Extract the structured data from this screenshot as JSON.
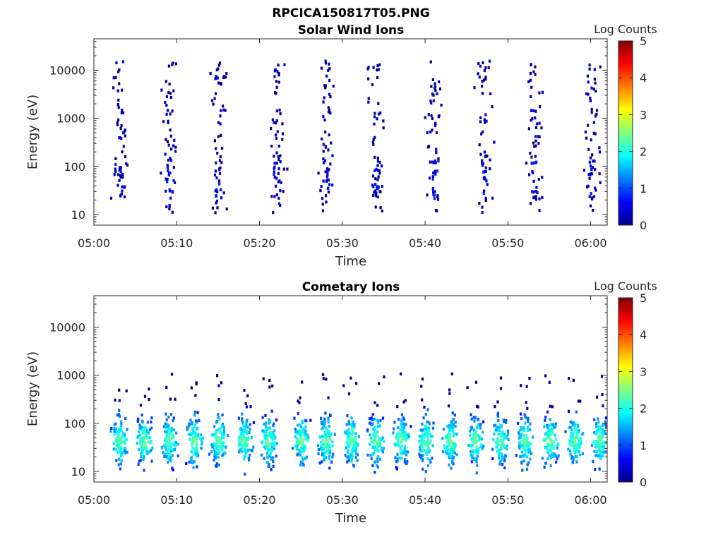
{
  "figure_title": "RPCICA150817T05.PNG",
  "chart_data": [
    {
      "type": "heatmap",
      "title": "Solar Wind Ions",
      "xlabel": "Time",
      "ylabel": "Energy (eV)",
      "yscale": "log",
      "ylim": [
        6,
        45000
      ],
      "xlim": [
        "05:00",
        "06:02"
      ],
      "xticks": [
        "05:00",
        "05:10",
        "05:20",
        "05:30",
        "05:40",
        "05:50",
        "06:00"
      ],
      "yticks": [
        "10",
        "100",
        "1000",
        "10000"
      ],
      "colorbar": {
        "label": "Log Counts",
        "min": 0,
        "max": 5,
        "ticks": [
          "0",
          "1",
          "2",
          "3",
          "4",
          "5"
        ],
        "colormap": "jet"
      },
      "grid": false,
      "scan_times": [
        "05:03",
        "05:09",
        "05:15",
        "05:22",
        "05:28",
        "05:34",
        "05:41",
        "05:47",
        "05:53",
        "06:00"
      ],
      "energy_range_ev": [
        10,
        15000
      ],
      "typical_log_counts": [
        0,
        1
      ]
    },
    {
      "type": "heatmap",
      "title": "Cometary Ions",
      "xlabel": "Time",
      "ylabel": "Energy (eV)",
      "yscale": "log",
      "ylim": [
        6,
        45000
      ],
      "xlim": [
        "05:00",
        "06:02"
      ],
      "xticks": [
        "05:00",
        "05:10",
        "05:20",
        "05:30",
        "05:40",
        "05:50",
        "06:00"
      ],
      "yticks": [
        "10",
        "100",
        "1000",
        "10000"
      ],
      "colorbar": {
        "label": "Log Counts",
        "min": 0,
        "max": 5,
        "ticks": [
          "0",
          "1",
          "2",
          "3",
          "4",
          "5"
        ],
        "colormap": "jet"
      },
      "grid": false,
      "band_times": [
        "05:03",
        "05:06",
        "05:09",
        "05:12",
        "05:15",
        "05:18",
        "05:21",
        "05:25",
        "05:28",
        "05:31",
        "05:34",
        "05:37",
        "05:40",
        "05:43",
        "05:46",
        "05:49",
        "05:52",
        "05:55",
        "05:58",
        "06:01"
      ],
      "energy_range_ev": [
        6,
        1000
      ],
      "peak_energy_ev": 40,
      "typical_log_counts": [
        0,
        2.5
      ]
    }
  ]
}
